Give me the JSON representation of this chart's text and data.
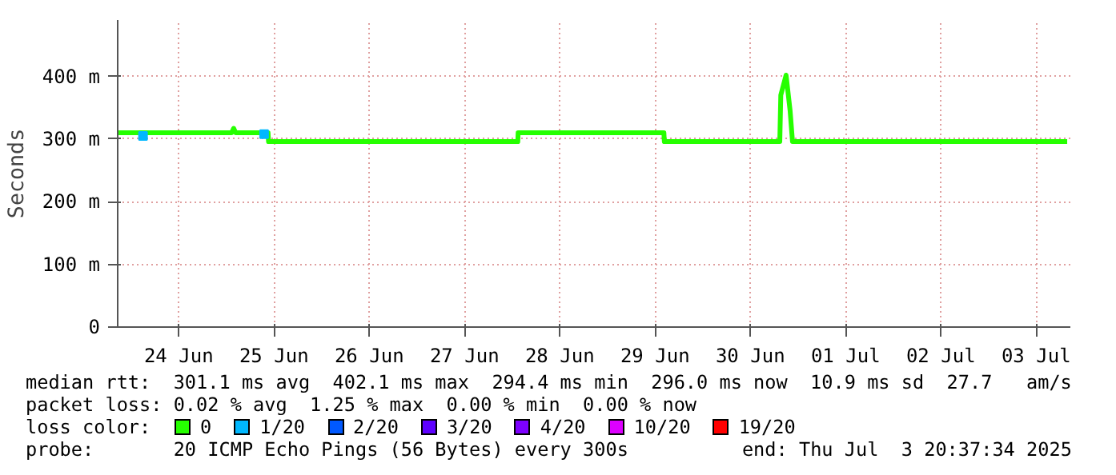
{
  "chart_data": {
    "type": "line",
    "ylabel": "Seconds",
    "xlim": [
      "2025-06-23T20:37",
      "2025-07-03T20:37"
    ],
    "xticks": [
      {
        "value": "2025-06-24T12:00",
        "label": "24 Jun"
      },
      {
        "value": "2025-06-25T12:00",
        "label": "25 Jun"
      },
      {
        "value": "2025-06-26T12:00",
        "label": "26 Jun"
      },
      {
        "value": "2025-06-27T12:00",
        "label": "27 Jun"
      },
      {
        "value": "2025-06-28T12:00",
        "label": "28 Jun"
      },
      {
        "value": "2025-06-29T12:00",
        "label": "29 Jun"
      },
      {
        "value": "2025-06-30T12:00",
        "label": "30 Jun"
      },
      {
        "value": "2025-07-01T12:00",
        "label": "01 Jul"
      },
      {
        "value": "2025-07-02T12:00",
        "label": "02 Jul"
      },
      {
        "value": "2025-07-03T12:00",
        "label": "03 Jul"
      }
    ],
    "ylim": [
      0,
      490
    ],
    "yticks": [
      0,
      {
        "value": 100,
        "label": "100 m"
      },
      {
        "value": 200,
        "label": "200 m"
      },
      {
        "value": 300,
        "label": "300 m"
      },
      {
        "value": 400,
        "label": "400 m"
      }
    ],
    "grid": true,
    "legend": "bottom",
    "legend_title": "loss color:",
    "series": [
      {
        "name": "0",
        "color": "#26ff00",
        "x": [
          "2025-06-23T20:37",
          "2025-06-25T01:20",
          "2025-06-25T01:50",
          "2025-06-25T02:20",
          "2025-06-25T10:30",
          "2025-06-25T10:37",
          "2025-06-28T01:25",
          "2025-06-28T01:30",
          "2025-06-29T14:13",
          "2025-06-29T14:20",
          "2025-06-30T19:25",
          "2025-06-30T19:40",
          "2025-06-30T21:00",
          "2025-06-30T22:00",
          "2025-06-30T22:37",
          "2025-07-03T19:49"
        ],
        "values": [
          310,
          310,
          317,
          310,
          310,
          296,
          296,
          310,
          310,
          296,
          296,
          370,
          402,
          346,
          296,
          296
        ]
      },
      {
        "name": "1/20",
        "color": "#00b8ff",
        "type": "scatter",
        "marker": "square",
        "x": [
          "2025-06-24T03:00",
          "2025-06-25T09:30"
        ],
        "values": [
          305,
          308
        ]
      },
      {
        "name": "2/20",
        "color": "#0059ff",
        "type": "scatter"
      },
      {
        "name": "3/20",
        "color": "#5e00ff",
        "type": "scatter"
      },
      {
        "name": "4/20",
        "color": "#7e00ff",
        "type": "scatter"
      },
      {
        "name": "10/20",
        "color": "#dd00ff",
        "type": "scatter"
      },
      {
        "name": "19/20",
        "color": "#ff0000",
        "type": "scatter"
      }
    ],
    "annotations": [
      "median rtt:  301.1 ms avg  402.1 ms max  294.4 ms min  296.0 ms now  10.9 ms sd  27.7   am/s",
      "packet loss: 0.02 % avg  1.25 % max  0.00 % min  0.00 % now",
      "probe:       20 ICMP Echo Pings (56 Bytes) every 300s",
      "end: Thu Jul  3 20:37:34 2025"
    ]
  }
}
